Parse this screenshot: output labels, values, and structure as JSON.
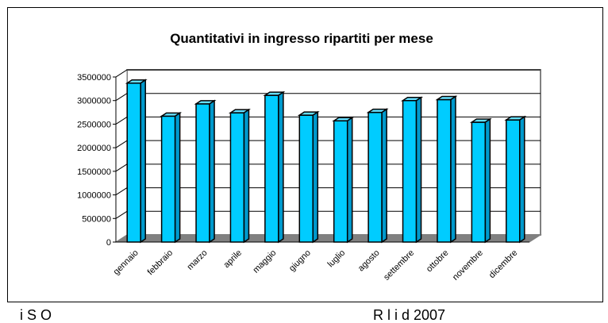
{
  "chart_data": {
    "type": "bar",
    "title": "Quantitativi in ingresso ripartiti per mese",
    "xlabel": "",
    "ylabel": "",
    "categories": [
      "gennaio",
      "febbraio",
      "marzo",
      "aprile",
      "maggio",
      "giugno",
      "luglio",
      "agosto",
      "settembre",
      "ottobre",
      "novembre",
      "dicembre"
    ],
    "values": [
      3370000,
      2670000,
      2930000,
      2740000,
      3110000,
      2690000,
      2570000,
      2750000,
      3000000,
      3020000,
      2540000,
      2590000
    ],
    "ylim": [
      0,
      3500000
    ],
    "yticks": [
      "0",
      "500000",
      "1000000",
      "1500000",
      "2000000",
      "2500000",
      "3000000",
      "3500000"
    ],
    "grid": true,
    "legend": "none",
    "three_d": true,
    "colors": {
      "bar_front": "#00ccff",
      "bar_top": "#66e0ff",
      "bar_side": "#0099cc",
      "bar_outline": "#000000",
      "floor": "#808080",
      "wall": "#ffffff",
      "gridline": "#000000",
      "axis": "#808080"
    }
  },
  "footer_fragments": {
    "left": "i    S    O",
    "right": "R  l  i        d  2007"
  }
}
